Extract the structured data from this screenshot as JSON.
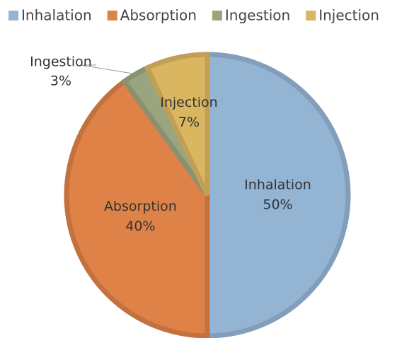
{
  "chart_data": {
    "type": "pie",
    "categories": [
      "Inhalation",
      "Absorption",
      "Ingestion",
      "Injection"
    ],
    "values": [
      50,
      40,
      3,
      7
    ],
    "value_labels": [
      "50%",
      "40%",
      "3%",
      "7%"
    ],
    "colors": [
      "#94b4d4",
      "#de8248",
      "#9aa57f",
      "#dbb661"
    ],
    "legend": "top"
  }
}
